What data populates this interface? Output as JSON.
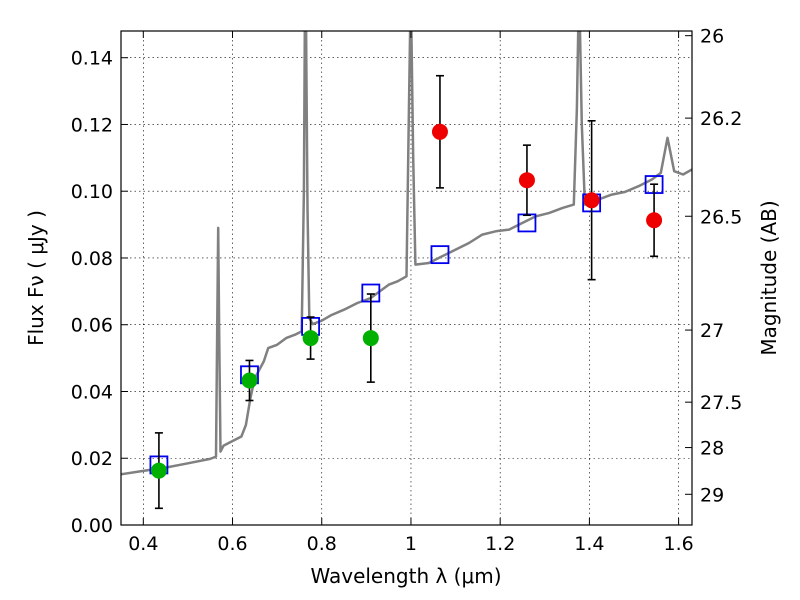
{
  "chart_data": {
    "type": "scatter",
    "xlabel": "Wavelength  λ (μm)",
    "ylabel": "Flux  Fν  ( μJy )",
    "ylabel_right": "Magnitude (AB)",
    "xlim": [
      0.35,
      1.63
    ],
    "ylim": [
      0.0,
      0.148
    ],
    "grid": true,
    "x_ticks": [
      {
        "value": 0.4,
        "label": "0.4"
      },
      {
        "value": 0.6,
        "label": "0.6"
      },
      {
        "value": 0.8,
        "label": "0.8"
      },
      {
        "value": 1.0,
        "label": "1"
      },
      {
        "value": 1.2,
        "label": "1.2"
      },
      {
        "value": 1.4,
        "label": "1.4"
      },
      {
        "value": 1.6,
        "label": "1.6"
      }
    ],
    "y_ticks": [
      {
        "value": 0.0,
        "label": "0.00"
      },
      {
        "value": 0.02,
        "label": "0.02"
      },
      {
        "value": 0.04,
        "label": "0.04"
      },
      {
        "value": 0.06,
        "label": "0.06"
      },
      {
        "value": 0.08,
        "label": "0.08"
      },
      {
        "value": 0.1,
        "label": "0.10"
      },
      {
        "value": 0.12,
        "label": "0.12"
      },
      {
        "value": 0.14,
        "label": "0.14"
      }
    ],
    "right_ticks": [
      {
        "label": "26",
        "flux": 0.1466
      },
      {
        "label": "26.2",
        "flux": 0.1219
      },
      {
        "label": "26.5",
        "flux": 0.0925
      },
      {
        "label": "27",
        "flux": 0.0584
      },
      {
        "label": "27.5",
        "flux": 0.0368
      },
      {
        "label": "28",
        "flux": 0.0232
      },
      {
        "label": "29",
        "flux": 0.0092
      }
    ],
    "model_spectrum": {
      "color": "#808080",
      "points": [
        [
          0.35,
          0.0152
        ],
        [
          0.4,
          0.0162
        ],
        [
          0.45,
          0.0172
        ],
        [
          0.5,
          0.0185
        ],
        [
          0.55,
          0.0198
        ],
        [
          0.563,
          0.0205
        ],
        [
          0.566,
          0.065
        ],
        [
          0.568,
          0.089
        ],
        [
          0.57,
          0.06
        ],
        [
          0.573,
          0.022
        ],
        [
          0.58,
          0.0238
        ],
        [
          0.62,
          0.0265
        ],
        [
          0.63,
          0.03
        ],
        [
          0.64,
          0.038
        ],
        [
          0.65,
          0.044
        ],
        [
          0.67,
          0.049
        ],
        [
          0.68,
          0.053
        ],
        [
          0.7,
          0.054
        ],
        [
          0.72,
          0.056
        ],
        [
          0.74,
          0.057
        ],
        [
          0.755,
          0.058
        ],
        [
          0.76,
          0.1
        ],
        [
          0.762,
          0.148
        ],
        [
          0.765,
          0.148
        ],
        [
          0.768,
          0.095
        ],
        [
          0.772,
          0.062
        ],
        [
          0.78,
          0.0602
        ],
        [
          0.8,
          0.0612
        ],
        [
          0.82,
          0.0628
        ],
        [
          0.85,
          0.0645
        ],
        [
          0.88,
          0.0665
        ],
        [
          0.91,
          0.068
        ],
        [
          0.93,
          0.07
        ],
        [
          0.95,
          0.072
        ],
        [
          0.97,
          0.073
        ],
        [
          0.99,
          0.0745
        ],
        [
          0.995,
          0.12
        ],
        [
          0.998,
          0.148
        ],
        [
          1.001,
          0.148
        ],
        [
          1.005,
          0.11
        ],
        [
          1.01,
          0.078
        ],
        [
          1.04,
          0.0785
        ],
        [
          1.07,
          0.0805
        ],
        [
          1.1,
          0.0825
        ],
        [
          1.13,
          0.0845
        ],
        [
          1.16,
          0.087
        ],
        [
          1.19,
          0.088
        ],
        [
          1.22,
          0.0885
        ],
        [
          1.25,
          0.0905
        ],
        [
          1.28,
          0.0925
        ],
        [
          1.31,
          0.0935
        ],
        [
          1.34,
          0.095
        ],
        [
          1.365,
          0.096
        ],
        [
          1.372,
          0.125
        ],
        [
          1.375,
          0.148
        ],
        [
          1.379,
          0.148
        ],
        [
          1.383,
          0.12
        ],
        [
          1.39,
          0.096
        ],
        [
          1.42,
          0.0975
        ],
        [
          1.45,
          0.099
        ],
        [
          1.48,
          0.0998
        ],
        [
          1.51,
          0.1015
        ],
        [
          1.54,
          0.1035
        ],
        [
          1.56,
          0.1055
        ],
        [
          1.575,
          0.116
        ],
        [
          1.59,
          0.106
        ],
        [
          1.61,
          0.105
        ],
        [
          1.63,
          0.1065
        ]
      ]
    },
    "series": [
      {
        "marker": "circle",
        "color": "#00b000",
        "points": [
          {
            "x": 0.435,
            "y": 0.0163,
            "err": 0.0113
          },
          {
            "x": 0.638,
            "y": 0.0433,
            "err": 0.006
          },
          {
            "x": 0.775,
            "y": 0.056,
            "err": 0.0063
          },
          {
            "x": 0.91,
            "y": 0.056,
            "err": 0.0132
          }
        ]
      },
      {
        "marker": "circle",
        "color": "#ee0000",
        "points": [
          {
            "x": 1.065,
            "y": 0.1178,
            "err": 0.0168
          },
          {
            "x": 1.26,
            "y": 0.1033,
            "err": 0.0105
          },
          {
            "x": 1.405,
            "y": 0.0973,
            "err": 0.0238
          },
          {
            "x": 1.545,
            "y": 0.0913,
            "err": 0.0108
          }
        ]
      },
      {
        "marker": "square",
        "color": "#0000ee",
        "points": [
          {
            "x": 0.435,
            "y": 0.018
          },
          {
            "x": 0.638,
            "y": 0.045
          },
          {
            "x": 0.775,
            "y": 0.0595
          },
          {
            "x": 0.91,
            "y": 0.0695
          },
          {
            "x": 1.065,
            "y": 0.081
          },
          {
            "x": 1.26,
            "y": 0.0905
          },
          {
            "x": 1.405,
            "y": 0.0965
          },
          {
            "x": 1.545,
            "y": 0.102
          }
        ]
      }
    ]
  }
}
